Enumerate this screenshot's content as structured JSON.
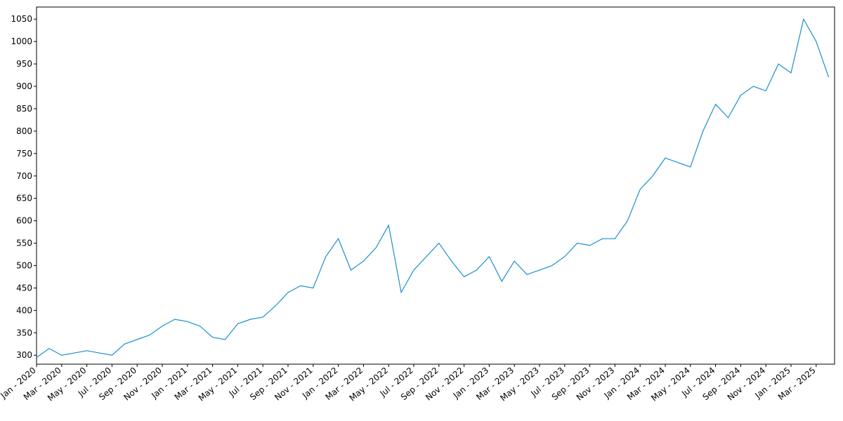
{
  "chart_data": {
    "type": "line",
    "categories": [
      "Jan - 2020",
      null,
      "Mar - 2020",
      null,
      "May - 2020",
      null,
      "Jul - 2020",
      null,
      "Sep - 2020",
      null,
      "Nov - 2020",
      null,
      "Jan - 2021",
      null,
      "Mar - 2021",
      null,
      "May - 2021",
      null,
      "Jul - 2021",
      null,
      "Sep - 2021",
      null,
      "Nov - 2021",
      null,
      "Jan - 2022",
      null,
      "Mar - 2022",
      null,
      "May - 2022",
      null,
      "Jul - 2022",
      null,
      "Sep - 2022",
      null,
      "Nov - 2022",
      null,
      "Jan - 2023",
      null,
      "Mar - 2023",
      null,
      "May - 2023",
      null,
      "Jul - 2023",
      null,
      "Sep - 2023",
      null,
      "Nov - 2023",
      null,
      "Jan - 2024",
      null,
      "Mar - 2024",
      null,
      "May - 2024",
      null,
      "Jul - 2024",
      null,
      "Sep - 2024",
      null,
      "Nov - 2024",
      null,
      "Jan - 2025",
      null,
      "Mar - 2025",
      null
    ],
    "series": [
      {
        "color": "#1a8fd0",
        "values": [
          295,
          315,
          300,
          305,
          310,
          305,
          300,
          325,
          335,
          345,
          365,
          380,
          375,
          365,
          340,
          335,
          370,
          380,
          385,
          410,
          440,
          455,
          450,
          520,
          560,
          490,
          510,
          540,
          590,
          440,
          490,
          520,
          550,
          510,
          475,
          490,
          520,
          465,
          510,
          480,
          490,
          500,
          520,
          550,
          545,
          560,
          560,
          600,
          670,
          700,
          740,
          730,
          720,
          800,
          860,
          830,
          880,
          900,
          890,
          950,
          930,
          1050,
          1000,
          920
        ]
      }
    ],
    "ylim": [
      280,
      1077
    ],
    "yticks": [
      300,
      350,
      400,
      450,
      500,
      550,
      600,
      650,
      700,
      750,
      800,
      850,
      900,
      950,
      1000,
      1050
    ]
  }
}
